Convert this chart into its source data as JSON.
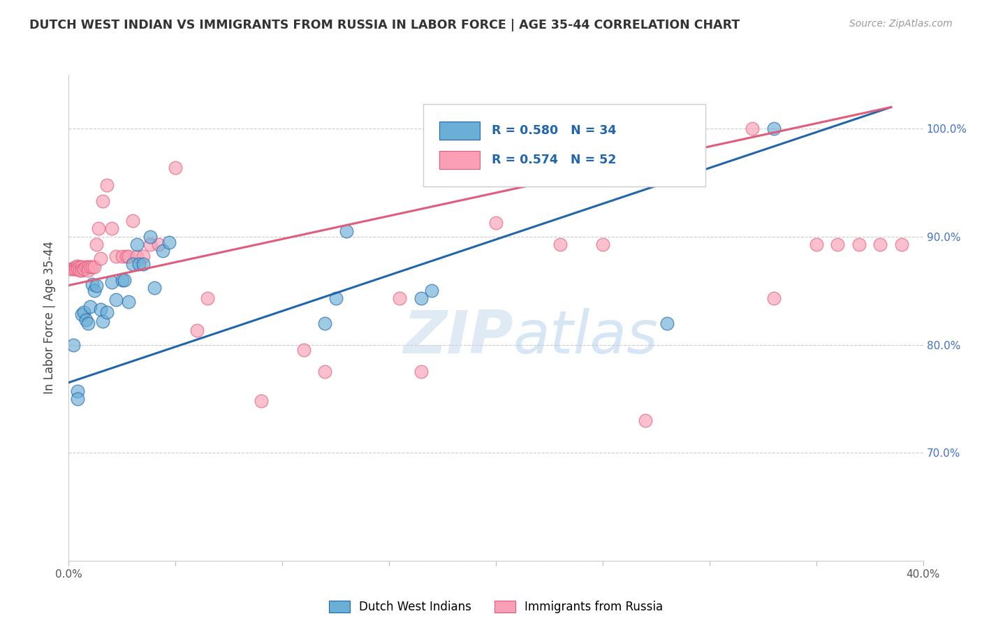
{
  "title": "DUTCH WEST INDIAN VS IMMIGRANTS FROM RUSSIA IN LABOR FORCE | AGE 35-44 CORRELATION CHART",
  "source_text": "Source: ZipAtlas.com",
  "ylabel": "In Labor Force | Age 35-44",
  "xlim": [
    0.0,
    0.4
  ],
  "ylim": [
    0.6,
    1.05
  ],
  "xtick_positions": [
    0.0,
    0.05,
    0.1,
    0.15,
    0.2,
    0.25,
    0.3,
    0.35,
    0.4
  ],
  "xtick_labels": [
    "0.0%",
    "",
    "",
    "",
    "",
    "",
    "",
    "",
    "40.0%"
  ],
  "ytick_positions": [
    0.6,
    0.7,
    0.8,
    0.9,
    1.0
  ],
  "ytick_labels_right": [
    "",
    "70.0%",
    "80.0%",
    "90.0%",
    "100.0%"
  ],
  "blue_color": "#6baed6",
  "pink_color": "#fa9fb5",
  "blue_line_color": "#2166ac",
  "pink_line_color": "#e05c7a",
  "legend_blue_R": "0.580",
  "legend_blue_N": "34",
  "legend_pink_R": "0.574",
  "legend_pink_N": "52",
  "legend_label_blue": "Dutch West Indians",
  "legend_label_pink": "Immigrants from Russia",
  "watermark_zip": "ZIP",
  "watermark_atlas": "atlas",
  "blue_line_x": [
    0.0,
    0.385
  ],
  "blue_line_y": [
    0.765,
    1.02
  ],
  "pink_line_x": [
    0.0,
    0.385
  ],
  "pink_line_y": [
    0.855,
    1.02
  ],
  "blue_x": [
    0.002,
    0.004,
    0.004,
    0.006,
    0.007,
    0.008,
    0.009,
    0.01,
    0.011,
    0.012,
    0.013,
    0.015,
    0.016,
    0.018,
    0.02,
    0.022,
    0.025,
    0.026,
    0.028,
    0.03,
    0.032,
    0.033,
    0.035,
    0.038,
    0.04,
    0.044,
    0.047,
    0.12,
    0.125,
    0.13,
    0.165,
    0.17,
    0.28,
    0.33
  ],
  "blue_y": [
    0.8,
    0.757,
    0.75,
    0.828,
    0.83,
    0.823,
    0.82,
    0.835,
    0.856,
    0.85,
    0.855,
    0.833,
    0.822,
    0.83,
    0.858,
    0.842,
    0.86,
    0.86,
    0.84,
    0.875,
    0.893,
    0.875,
    0.875,
    0.9,
    0.853,
    0.887,
    0.895,
    0.82,
    0.843,
    0.905,
    0.843,
    0.85,
    0.82,
    1.0
  ],
  "pink_x": [
    0.001,
    0.002,
    0.003,
    0.003,
    0.004,
    0.004,
    0.005,
    0.005,
    0.006,
    0.006,
    0.007,
    0.007,
    0.008,
    0.009,
    0.009,
    0.01,
    0.011,
    0.012,
    0.013,
    0.014,
    0.015,
    0.016,
    0.018,
    0.02,
    0.022,
    0.025,
    0.027,
    0.028,
    0.03,
    0.032,
    0.035,
    0.038,
    0.042,
    0.05,
    0.06,
    0.065,
    0.09,
    0.11,
    0.12,
    0.155,
    0.165,
    0.2,
    0.23,
    0.25,
    0.27,
    0.32,
    0.33,
    0.35,
    0.36,
    0.37,
    0.38,
    0.39
  ],
  "pink_y": [
    0.87,
    0.87,
    0.872,
    0.87,
    0.873,
    0.87,
    0.872,
    0.869,
    0.872,
    0.869,
    0.87,
    0.87,
    0.872,
    0.872,
    0.869,
    0.872,
    0.872,
    0.872,
    0.893,
    0.908,
    0.88,
    0.933,
    0.948,
    0.908,
    0.882,
    0.882,
    0.882,
    0.882,
    0.915,
    0.882,
    0.882,
    0.893,
    0.893,
    0.964,
    0.813,
    0.843,
    0.748,
    0.795,
    0.775,
    0.843,
    0.775,
    0.913,
    0.893,
    0.893,
    0.73,
    1.0,
    0.843,
    0.893,
    0.893,
    0.893,
    0.893,
    0.893
  ]
}
